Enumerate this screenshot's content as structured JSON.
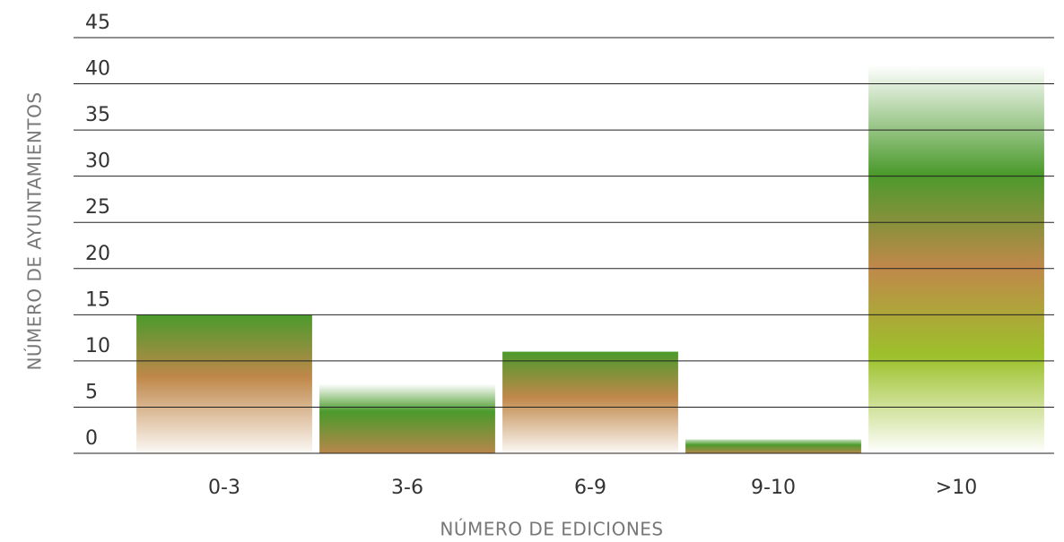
{
  "chart_data": {
    "type": "bar",
    "x_label": "NÚMERO DE EDICIONES",
    "y_label": "NÚMERO DE AYUNTAMIENTOS",
    "categories": [
      "0-3",
      "3-6",
      "6-9",
      "9-10",
      ">10"
    ],
    "values": [
      15,
      7.5,
      11,
      1.5,
      42
    ],
    "ylim": [
      0,
      45
    ],
    "yticks": [
      0,
      5,
      10,
      15,
      20,
      25,
      30,
      35,
      40,
      45
    ],
    "grid": true
  }
}
